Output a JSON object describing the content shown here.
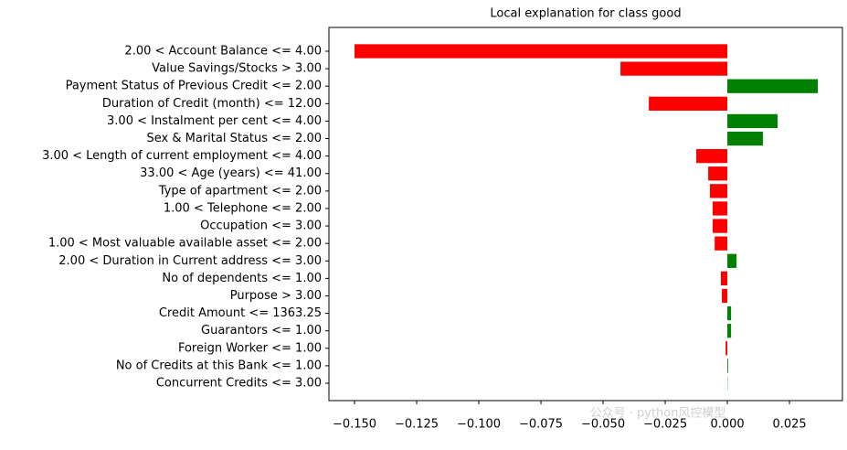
{
  "chart_data": {
    "type": "barh",
    "title": "Local explanation for class good",
    "categories": [
      "2.00 < Account Balance <= 4.00",
      "Value Savings/Stocks > 3.00",
      "Payment Status of Previous Credit <= 2.00",
      "Duration of Credit (month) <= 12.00",
      "3.00 < Instalment per cent <= 4.00",
      "Sex & Marital Status <= 2.00",
      "3.00 < Length of current employment <= 4.00",
      "33.00 < Age (years) <= 41.00",
      "Type of apartment <= 2.00",
      "1.00 < Telephone <= 2.00",
      "Occupation <= 3.00",
      "1.00 < Most valuable available asset <= 2.00",
      "2.00 < Duration in Current address <= 3.00",
      "No of dependents <= 1.00",
      "Purpose > 3.00",
      "Credit Amount <= 1363.25",
      "Guarantors <= 1.00",
      "Foreign Worker <= 1.00",
      "No of Credits at this Bank <= 1.00",
      "Concurrent Credits <= 3.00"
    ],
    "values": [
      -0.15,
      -0.043,
      0.0364,
      -0.0316,
      0.0202,
      0.0143,
      -0.0125,
      -0.0077,
      -0.007,
      -0.0059,
      -0.0059,
      -0.0051,
      0.0037,
      -0.0026,
      -0.0022,
      0.0015,
      0.0015,
      -0.0007,
      0.0003,
      0.0001
    ],
    "positive_color": "#008000",
    "negative_color": "#ff0000",
    "xlim": [
      -0.1603,
      0.0463
    ],
    "xticks": [
      {
        "value": -0.15,
        "label": "−0.150"
      },
      {
        "value": -0.125,
        "label": "−0.125"
      },
      {
        "value": -0.1,
        "label": "−0.100"
      },
      {
        "value": -0.075,
        "label": "−0.075"
      },
      {
        "value": -0.05,
        "label": "−0.050"
      },
      {
        "value": -0.025,
        "label": "−0.025"
      },
      {
        "value": 0,
        "label": "0.000"
      },
      {
        "value": 0.025,
        "label": "0.025"
      }
    ],
    "watermark": "公众号 · python风控模型"
  }
}
